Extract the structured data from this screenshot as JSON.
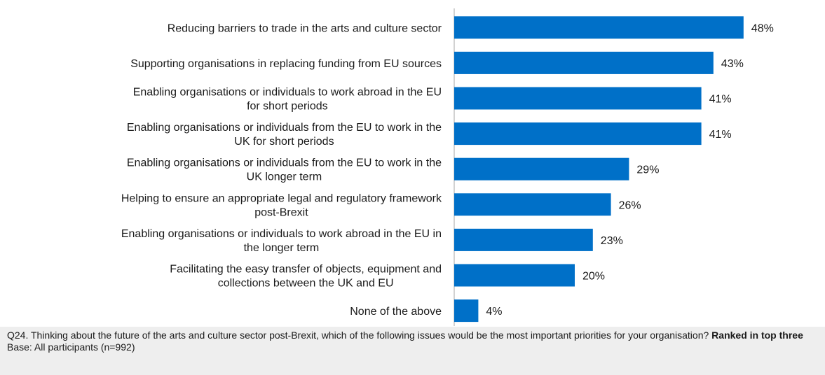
{
  "chart_data": {
    "type": "bar",
    "orientation": "horizontal",
    "categories": [
      [
        "Reducing barriers to trade in the arts and culture sector"
      ],
      [
        "Supporting organisations in replacing funding from EU sources"
      ],
      [
        "Enabling organisations or individuals to work abroad in the EU",
        "for short periods"
      ],
      [
        "Enabling organisations or individuals from the EU to work in the",
        "UK for short periods"
      ],
      [
        "Enabling organisations or individuals from the EU to work in the",
        "UK longer term"
      ],
      [
        "Helping to ensure an appropriate legal and regulatory framework",
        "post-Brexit"
      ],
      [
        "Enabling organisations or individuals to work abroad in the EU in",
        "the longer term"
      ],
      [
        "Facilitating the easy transfer of objects, equipment and",
        "collections between the UK and EU"
      ],
      [
        "None of the above"
      ]
    ],
    "values": [
      48,
      43,
      41,
      41,
      29,
      26,
      23,
      20,
      4
    ],
    "value_labels": [
      "48%",
      "43%",
      "41%",
      "41%",
      "29%",
      "26%",
      "23%",
      "20%",
      "4%"
    ],
    "xlim": [
      0,
      50
    ],
    "grid": false,
    "bar_color": "#0070c8"
  },
  "footer": {
    "question": "Q24. Thinking about the future of the arts and culture sector post-Brexit, which of the following issues would be the most important priorities for your organisation?",
    "emphasis": "Ranked in top three",
    "base": "Base: All participants (n=992)"
  }
}
